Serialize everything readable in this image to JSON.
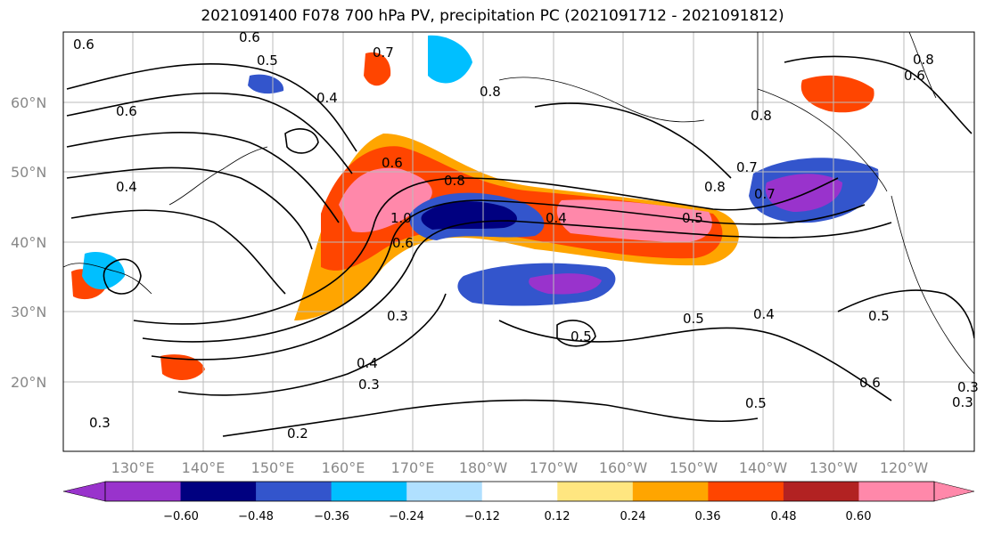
{
  "title": "2021091400 F078 700 hPa PV, precipitation PC (2021091712 - 2021091812)",
  "lat_labels": [
    "60°N",
    "50°N",
    "40°N",
    "30°N",
    "20°N"
  ],
  "lon_labels": [
    "130°E",
    "140°E",
    "150°E",
    "160°E",
    "170°E",
    "180°W",
    "170°W",
    "160°W",
    "150°W",
    "140°W",
    "130°W",
    "120°W"
  ],
  "colorbar": {
    "ticks": [
      "−0.60",
      "−0.48",
      "−0.36",
      "−0.24",
      "−0.12",
      "0.12",
      "0.24",
      "0.36",
      "0.48",
      "0.60"
    ],
    "colors": [
      "#9933cc",
      "#000080",
      "#3355cc",
      "#00bfff",
      "#b0e0ff",
      "#ffffff",
      "#ffe680",
      "#ffa500",
      "#ff4500",
      "#b22222",
      "#ff88aa"
    ]
  },
  "contour_labels": [
    "0.6",
    "0.6",
    "0.5",
    "0.7",
    "0.4",
    "0.8",
    "0.8",
    "0.8",
    "0.6",
    "0.8",
    "1.0",
    "0.6",
    "0.4",
    "0.5",
    "0.7",
    "0.7",
    "0.5",
    "0.3",
    "0.4",
    "0.3",
    "0.2",
    "0.5",
    "0.5",
    "0.4",
    "0.5",
    "0.6",
    "0.3",
    "0.3",
    "0.3",
    "0.6",
    "0.6",
    "0.4",
    "0.8"
  ]
}
